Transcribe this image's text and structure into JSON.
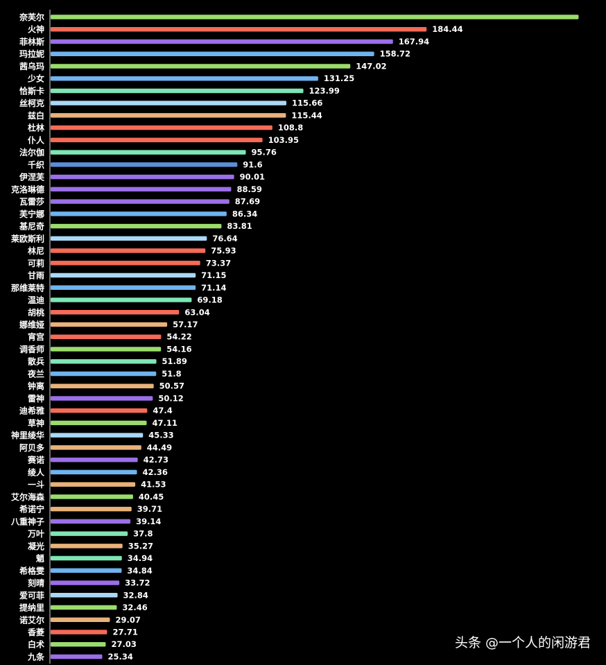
{
  "chart_data": {
    "type": "bar",
    "orientation": "horizontal",
    "categories": [
      "奈芙尔",
      "火神",
      "菲林斯",
      "玛拉妮",
      "茜乌玛",
      "少女",
      "恰斯卡",
      "丝柯克",
      "兹白",
      "杜林",
      "仆人",
      "法尔伽",
      "千织",
      "伊涅芙",
      "克洛琳德",
      "瓦雷莎",
      "芙宁娜",
      "基尼奇",
      "莱欧斯利",
      "林尼",
      "可莉",
      "甘雨",
      "那维莱特",
      "温迪",
      "胡桃",
      "娜维娅",
      "宵宫",
      "调香师",
      "散兵",
      "夜兰",
      "钟离",
      "雷神",
      "迪希雅",
      "草神",
      "神里绫华",
      "阿贝多",
      "赛诺",
      "绫人",
      "一斗",
      "艾尔海森",
      "希诺宁",
      "八重神子",
      "万叶",
      "凝光",
      "魈",
      "希格雯",
      "刻晴",
      "爱可菲",
      "提纳里",
      "诺艾尔",
      "香菱",
      "白术",
      "九条"
    ],
    "values": [
      null,
      184.44,
      167.94,
      158.72,
      147.02,
      131.25,
      123.99,
      115.66,
      115.44,
      108.8,
      103.95,
      95.76,
      91.6,
      90.01,
      88.59,
      87.69,
      86.34,
      83.81,
      76.64,
      75.93,
      73.37,
      71.15,
      71.14,
      69.18,
      63.04,
      57.17,
      54.22,
      54.16,
      51.89,
      51.8,
      50.57,
      50.12,
      47.4,
      47.11,
      45.33,
      44.49,
      42.73,
      42.36,
      41.53,
      40.45,
      39.71,
      39.14,
      37.8,
      35.27,
      34.94,
      34.84,
      33.72,
      32.84,
      32.46,
      29.07,
      27.71,
      27.03,
      25.34
    ],
    "value_labels": [
      "",
      "184.44",
      "167.94",
      "158.72",
      "147.02",
      "131.25",
      "123.99",
      "115.66",
      "115.44",
      "108.8",
      "103.95",
      "95.76",
      "91.6",
      "90.01",
      "88.59",
      "87.69",
      "86.34",
      "83.81",
      "76.64",
      "75.93",
      "73.37",
      "71.15",
      "71.14",
      "69.18",
      "63.04",
      "57.17",
      "54.22",
      "54.16",
      "51.89",
      "51.8",
      "50.57",
      "50.12",
      "47.4",
      "47.11",
      "45.33",
      "44.49",
      "42.73",
      "42.36",
      "41.53",
      "40.45",
      "39.71",
      "39.14",
      "37.8",
      "35.27",
      "34.94",
      "34.84",
      "33.72",
      "32.84",
      "32.46",
      "29.07",
      "27.71",
      "27.03",
      "25.34"
    ],
    "first_bar_value_estimate": 259,
    "colors": [
      "#9bdc6c",
      "#f46b57",
      "#9b6fe8",
      "#6fb3ef",
      "#9bdc6c",
      "#6fb3ef",
      "#7ee6b4",
      "#a9d8f5",
      "#e9b27a",
      "#f46b57",
      "#f46b57",
      "#7ee6b4",
      "#5b8fd6",
      "#9b6fe8",
      "#9b6fe8",
      "#9b6fe8",
      "#6fb3ef",
      "#9bdc6c",
      "#a9d8f5",
      "#f46b57",
      "#f46b57",
      "#a9d8f5",
      "#6fb3ef",
      "#7ee6b4",
      "#f46b57",
      "#e9b27a",
      "#f46b57",
      "#9bdc6c",
      "#7ee6b4",
      "#6fb3ef",
      "#e9b27a",
      "#9b6fe8",
      "#f46b57",
      "#9bdc6c",
      "#a9d8f5",
      "#e9b27a",
      "#9b6fe8",
      "#6fb3ef",
      "#e9b27a",
      "#9bdc6c",
      "#e9b27a",
      "#9b6fe8",
      "#7ee6b4",
      "#e9b27a",
      "#7ee6b4",
      "#6fb3ef",
      "#9b6fe8",
      "#a9d8f5",
      "#9bdc6c",
      "#e9b27a",
      "#f46b57",
      "#9bdc6c",
      "#9b6fe8"
    ],
    "title": "",
    "xlabel": "",
    "ylabel": "",
    "grid": false,
    "legend": "none"
  },
  "watermark": "头条 @一个人的闲游君"
}
